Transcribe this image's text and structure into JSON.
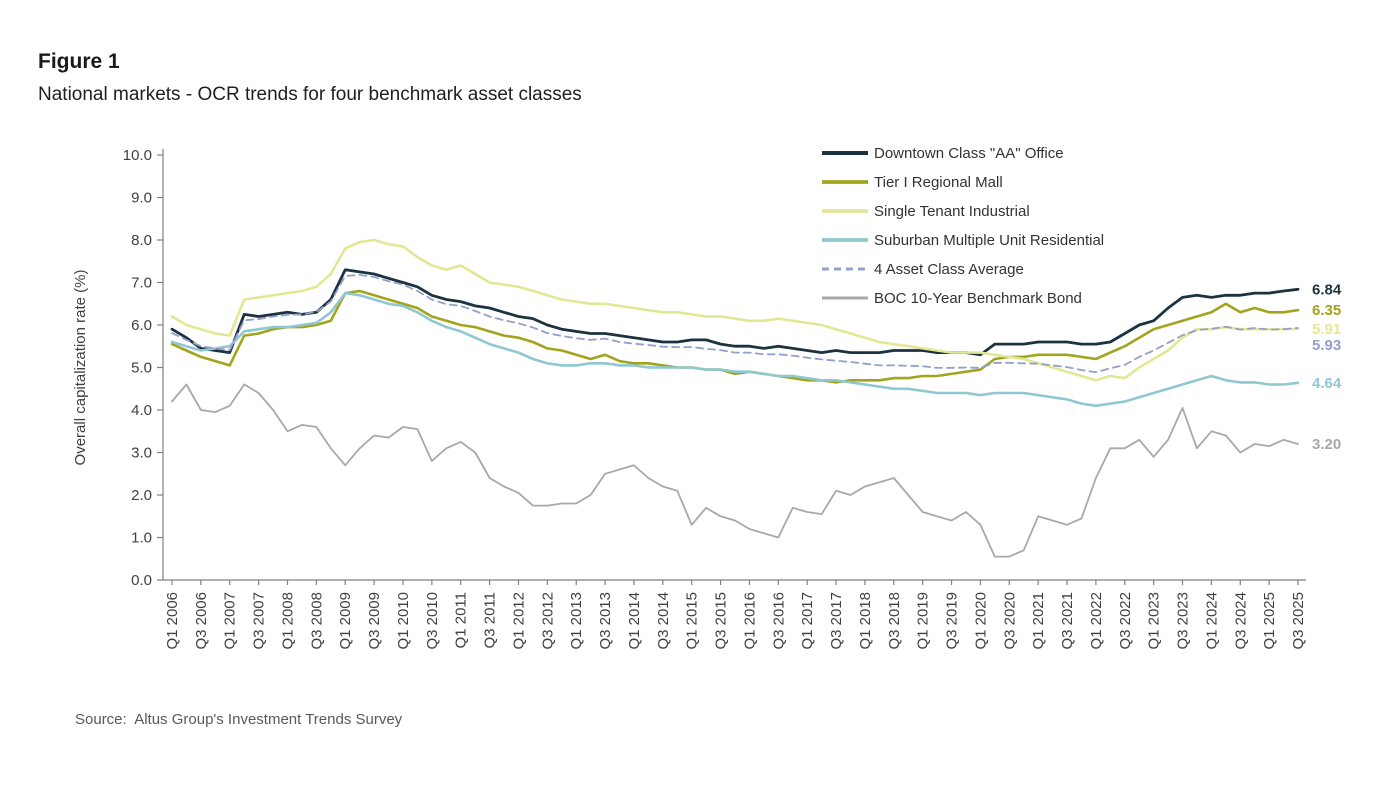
{
  "figure": {
    "title": "Figure 1",
    "subtitle": "National markets - OCR trends for four benchmark asset classes",
    "source": "Source:  Altus Group's Investment Trends Survey"
  },
  "chart_data": {
    "type": "line",
    "title": "",
    "xlabel": "",
    "ylabel": "Overall capitalization rate (%)",
    "ylim": [
      0,
      10
    ],
    "y_ticks": [
      "0.0",
      "1.0",
      "2.0",
      "3.0",
      "4.0",
      "5.0",
      "6.0",
      "7.0",
      "8.0",
      "9.0",
      "10.0"
    ],
    "x_tick_every": 2,
    "grid": false,
    "legend_position": "top-right",
    "categories": [
      "Q1 2006",
      "Q2 2006",
      "Q3 2006",
      "Q4 2006",
      "Q1 2007",
      "Q2 2007",
      "Q3 2007",
      "Q4 2007",
      "Q1 2008",
      "Q2 2008",
      "Q3 2008",
      "Q4 2008",
      "Q1 2009",
      "Q2 2009",
      "Q3 2009",
      "Q4 2009",
      "Q1 2010",
      "Q2 2010",
      "Q3 2010",
      "Q4 2010",
      "Q1 2011",
      "Q2 2011",
      "Q3 2011",
      "Q4 2011",
      "Q1 2012",
      "Q2 2012",
      "Q3 2012",
      "Q4 2012",
      "Q1 2013",
      "Q2 2013",
      "Q3 2013",
      "Q4 2013",
      "Q1 2014",
      "Q2 2014",
      "Q3 2014",
      "Q4 2014",
      "Q1 2015",
      "Q2 2015",
      "Q3 2015",
      "Q4 2015",
      "Q1 2016",
      "Q2 2016",
      "Q3 2016",
      "Q4 2016",
      "Q1 2017",
      "Q2 2017",
      "Q3 2017",
      "Q4 2017",
      "Q1 2018",
      "Q2 2018",
      "Q3 2018",
      "Q4 2018",
      "Q1 2019",
      "Q2 2019",
      "Q3 2019",
      "Q4 2019",
      "Q1 2020",
      "Q2 2020",
      "Q3 2020",
      "Q4 2020",
      "Q1 2021",
      "Q2 2021",
      "Q3 2021",
      "Q4 2021",
      "Q1 2022",
      "Q2 2022",
      "Q3 2022",
      "Q4 2022",
      "Q1 2023",
      "Q2 2023",
      "Q3 2023",
      "Q4 2023",
      "Q1 2024",
      "Q2 2024",
      "Q3 2024",
      "Q4 2024",
      "Q1 2025",
      "Q2 2025",
      "Q3 2025"
    ],
    "series": [
      {
        "id": "office",
        "name": "Downtown Class \"AA\" Office",
        "color": "#1b3240",
        "width": 2.8,
        "dash": false,
        "end_label": "6.84",
        "values": [
          5.9,
          5.7,
          5.45,
          5.4,
          5.35,
          6.25,
          6.2,
          6.25,
          6.3,
          6.25,
          6.3,
          6.6,
          7.3,
          7.25,
          7.2,
          7.1,
          7.0,
          6.9,
          6.7,
          6.6,
          6.55,
          6.45,
          6.4,
          6.3,
          6.2,
          6.15,
          6.0,
          5.9,
          5.85,
          5.8,
          5.8,
          5.75,
          5.7,
          5.65,
          5.6,
          5.6,
          5.65,
          5.65,
          5.55,
          5.5,
          5.5,
          5.45,
          5.5,
          5.45,
          5.4,
          5.35,
          5.4,
          5.35,
          5.35,
          5.35,
          5.4,
          5.4,
          5.4,
          5.35,
          5.35,
          5.35,
          5.3,
          5.55,
          5.55,
          5.55,
          5.6,
          5.6,
          5.6,
          5.55,
          5.55,
          5.6,
          5.8,
          6.0,
          6.1,
          6.4,
          6.65,
          6.7,
          6.65,
          6.7,
          6.7,
          6.75,
          6.75,
          6.8,
          6.84
        ]
      },
      {
        "id": "mall",
        "name": "Tier I Regional Mall",
        "color": "#a3a41d",
        "width": 2.6,
        "dash": false,
        "end_label": "6.35",
        "values": [
          5.55,
          5.4,
          5.25,
          5.15,
          5.05,
          5.75,
          5.8,
          5.9,
          5.95,
          5.95,
          6.0,
          6.1,
          6.75,
          6.8,
          6.7,
          6.6,
          6.5,
          6.4,
          6.2,
          6.1,
          6.0,
          5.95,
          5.85,
          5.75,
          5.7,
          5.6,
          5.45,
          5.4,
          5.3,
          5.2,
          5.3,
          5.15,
          5.1,
          5.1,
          5.05,
          5.0,
          5.0,
          4.95,
          4.95,
          4.85,
          4.9,
          4.85,
          4.8,
          4.75,
          4.7,
          4.7,
          4.65,
          4.7,
          4.7,
          4.7,
          4.75,
          4.75,
          4.8,
          4.8,
          4.85,
          4.9,
          4.95,
          5.2,
          5.25,
          5.25,
          5.3,
          5.3,
          5.3,
          5.25,
          5.2,
          5.35,
          5.5,
          5.7,
          5.9,
          6.0,
          6.1,
          6.2,
          6.3,
          6.5,
          6.3,
          6.4,
          6.3,
          6.3,
          6.35
        ]
      },
      {
        "id": "industrial",
        "name": "Single Tenant Industrial",
        "color": "#e3e794",
        "width": 2.6,
        "dash": false,
        "end_label": "5.91",
        "values": [
          6.2,
          6.0,
          5.9,
          5.8,
          5.75,
          6.6,
          6.65,
          6.7,
          6.75,
          6.8,
          6.9,
          7.2,
          7.8,
          7.95,
          8.0,
          7.9,
          7.85,
          7.6,
          7.4,
          7.3,
          7.4,
          7.2,
          7.0,
          6.95,
          6.9,
          6.8,
          6.7,
          6.6,
          6.55,
          6.5,
          6.5,
          6.45,
          6.4,
          6.35,
          6.3,
          6.3,
          6.25,
          6.2,
          6.2,
          6.15,
          6.1,
          6.1,
          6.15,
          6.1,
          6.05,
          6.0,
          5.9,
          5.8,
          5.7,
          5.6,
          5.55,
          5.5,
          5.45,
          5.4,
          5.35,
          5.35,
          5.35,
          5.3,
          5.25,
          5.2,
          5.1,
          5.0,
          4.9,
          4.8,
          4.7,
          4.8,
          4.75,
          5.0,
          5.2,
          5.4,
          5.7,
          5.9,
          5.9,
          5.95,
          5.9,
          5.9,
          5.9,
          5.9,
          5.91
        ]
      },
      {
        "id": "residential",
        "name": "Suburban Multiple Unit Residential",
        "color": "#8fc7d3",
        "width": 2.6,
        "dash": false,
        "end_label": "4.64",
        "values": [
          5.6,
          5.5,
          5.4,
          5.45,
          5.5,
          5.85,
          5.9,
          5.95,
          5.95,
          6.0,
          6.05,
          6.3,
          6.75,
          6.7,
          6.6,
          6.5,
          6.45,
          6.3,
          6.1,
          5.95,
          5.85,
          5.7,
          5.55,
          5.45,
          5.35,
          5.2,
          5.1,
          5.05,
          5.05,
          5.1,
          5.1,
          5.05,
          5.05,
          5.0,
          5.0,
          5.0,
          5.0,
          4.95,
          4.95,
          4.9,
          4.9,
          4.85,
          4.8,
          4.8,
          4.75,
          4.7,
          4.7,
          4.65,
          4.6,
          4.55,
          4.5,
          4.5,
          4.45,
          4.4,
          4.4,
          4.4,
          4.35,
          4.4,
          4.4,
          4.4,
          4.35,
          4.3,
          4.25,
          4.15,
          4.1,
          4.15,
          4.2,
          4.3,
          4.4,
          4.5,
          4.6,
          4.7,
          4.8,
          4.7,
          4.65,
          4.65,
          4.6,
          4.6,
          4.64
        ]
      },
      {
        "id": "average",
        "name": "4 Asset Class Average",
        "color": "#92a0cb",
        "width": 1.8,
        "dash": true,
        "end_label": "5.93",
        "values": [
          5.81,
          5.65,
          5.5,
          5.45,
          5.41,
          6.11,
          6.14,
          6.2,
          6.24,
          6.25,
          6.31,
          6.55,
          7.15,
          7.18,
          7.13,
          7.03,
          6.95,
          6.8,
          6.6,
          6.49,
          6.45,
          6.33,
          6.2,
          6.11,
          6.04,
          5.94,
          5.81,
          5.74,
          5.69,
          5.65,
          5.68,
          5.6,
          5.56,
          5.53,
          5.49,
          5.48,
          5.48,
          5.44,
          5.41,
          5.35,
          5.35,
          5.31,
          5.31,
          5.28,
          5.23,
          5.19,
          5.16,
          5.13,
          5.09,
          5.05,
          5.05,
          5.04,
          5.03,
          4.99,
          4.99,
          5.0,
          4.99,
          5.11,
          5.11,
          5.1,
          5.09,
          5.05,
          5.01,
          4.94,
          4.89,
          4.98,
          5.06,
          5.25,
          5.4,
          5.58,
          5.76,
          5.88,
          5.91,
          5.96,
          5.89,
          5.93,
          5.89,
          5.9,
          5.93
        ]
      },
      {
        "id": "bond",
        "name": "BOC 10-Year Benchmark Bond",
        "color": "#a8a8a8",
        "width": 1.8,
        "dash": false,
        "end_label": "3.20",
        "values": [
          4.2,
          4.6,
          4.0,
          3.95,
          4.1,
          4.6,
          4.4,
          4.0,
          3.5,
          3.65,
          3.6,
          3.1,
          2.7,
          3.1,
          3.4,
          3.35,
          3.6,
          3.55,
          2.8,
          3.1,
          3.25,
          3.0,
          2.4,
          2.2,
          2.05,
          1.75,
          1.75,
          1.8,
          1.8,
          2.0,
          2.5,
          2.6,
          2.7,
          2.4,
          2.2,
          2.1,
          1.3,
          1.7,
          1.5,
          1.4,
          1.2,
          1.1,
          1.0,
          1.7,
          1.6,
          1.55,
          2.1,
          2.0,
          2.2,
          2.3,
          2.4,
          2.0,
          1.6,
          1.5,
          1.4,
          1.6,
          1.3,
          0.55,
          0.55,
          0.7,
          1.5,
          1.4,
          1.3,
          1.45,
          2.4,
          3.1,
          3.1,
          3.3,
          2.9,
          3.3,
          4.05,
          3.1,
          3.5,
          3.4,
          3.0,
          3.2,
          3.15,
          3.3,
          3.2
        ]
      }
    ]
  }
}
